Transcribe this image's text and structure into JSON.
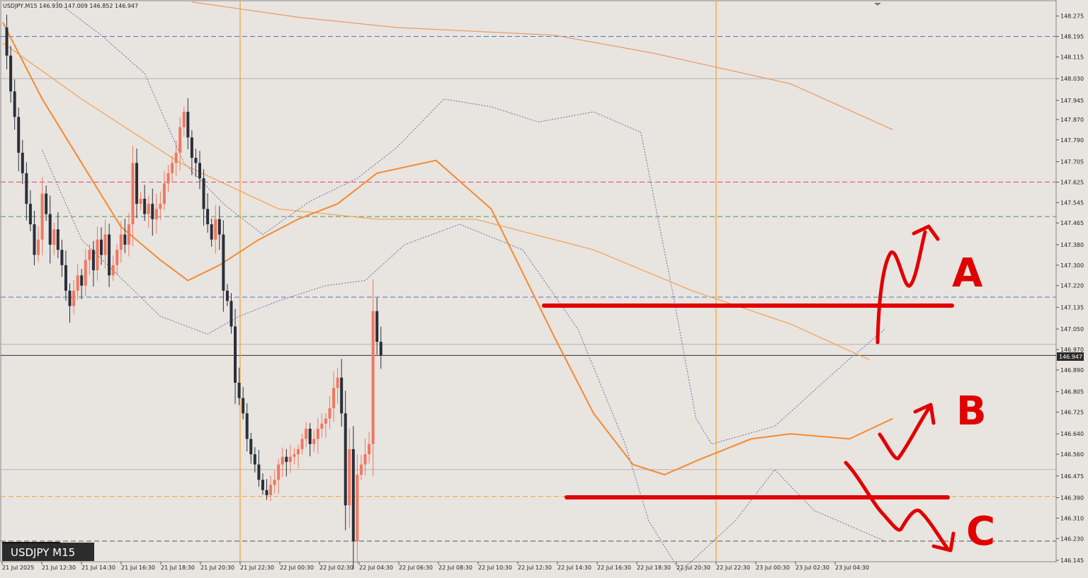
{
  "header": {
    "info": "USDJPY,M15  146.930 147.009 146.852 146.947"
  },
  "symbol_label": "USDJPY M15",
  "price_tag": "146.947",
  "chart_data": {
    "type": "candlestick",
    "symbol": "USDJPY",
    "timeframe": "M15",
    "ylim": [
      146.145,
      148.31
    ],
    "y_ticks": [
      "148.275",
      "148.195",
      "148.115",
      "148.030",
      "147.945",
      "147.870",
      "147.790",
      "147.705",
      "147.625",
      "147.545",
      "147.465",
      "147.380",
      "147.300",
      "147.220",
      "147.135",
      "147.050",
      "146.970",
      "146.890",
      "146.805",
      "146.725",
      "146.640",
      "146.560",
      "146.475",
      "146.390",
      "146.310",
      "146.230",
      "146.145"
    ],
    "x_ticks": [
      "21 Jul 2025",
      "21 Jul 12:30",
      "21 Jul 14:30",
      "21 Jul 16:30",
      "21 Jul 18:30",
      "21 Jul 20:30",
      "21 Jul 22:30",
      "22 Jul 00:30",
      "22 Jul 02:30",
      "22 Jul 04:30",
      "22 Jul 06:30",
      "22 Jul 08:30",
      "22 Jul 10:30",
      "22 Jul 12:30",
      "22 Jul 14:30",
      "22 Jul 16:30",
      "22 Jul 18:30",
      "22 Jul 20:30",
      "22 Jul 22:30",
      "23 Jul 00:30",
      "23 Jul 02:30",
      "23 Jul 04:30"
    ],
    "current_price": 146.947,
    "last_bar": {
      "open": 146.93,
      "high": 147.009,
      "low": 146.852,
      "close": 146.947
    },
    "close_path": [
      148.23,
      148.12,
      147.98,
      147.88,
      147.74,
      147.66,
      147.54,
      147.46,
      147.34,
      147.4,
      147.58,
      147.5,
      147.38,
      147.44,
      147.36,
      147.3,
      147.2,
      147.14,
      147.2,
      147.26,
      147.22,
      147.32,
      147.36,
      147.28,
      147.4,
      147.34,
      147.42,
      147.26,
      147.3,
      147.36,
      147.42,
      147.38,
      147.46,
      147.7,
      147.54,
      147.56,
      147.5,
      147.54,
      147.48,
      147.52,
      147.54,
      147.62,
      147.66,
      147.7,
      147.74,
      147.84,
      147.9,
      147.8,
      147.72,
      147.7,
      147.64,
      147.52,
      147.46,
      147.4,
      147.48,
      147.42,
      147.2,
      147.16,
      147.06,
      146.84,
      146.78,
      146.72,
      146.62,
      146.56,
      146.52,
      146.46,
      146.42,
      146.4,
      146.44,
      146.46,
      146.52,
      146.55,
      146.53,
      146.55,
      146.56,
      146.58,
      146.62,
      146.66,
      146.6,
      146.62,
      146.66,
      146.68,
      146.7,
      146.74,
      146.82,
      146.86,
      146.72,
      146.36,
      146.58,
      146.22,
      146.48,
      146.52,
      146.56,
      146.6,
      147.12,
      147.0,
      146.947
    ],
    "horizontal_levels": [
      {
        "price": 148.195,
        "color": "#4a7ac0",
        "style": "dashed"
      },
      {
        "price": 148.03,
        "color": "#b4b4b4",
        "style": "solid"
      },
      {
        "price": 147.625,
        "color": "#e04080",
        "style": "dashed"
      },
      {
        "price": 147.49,
        "color": "#4a9a4a",
        "style": "dashed"
      },
      {
        "price": 147.175,
        "color": "#4a7ac0",
        "style": "dashed"
      },
      {
        "price": 146.99,
        "color": "#b4b4b4",
        "style": "solid"
      },
      {
        "price": 146.947,
        "color": "#333333",
        "style": "solid"
      },
      {
        "price": 146.5,
        "color": "#b4b4b4",
        "style": "solid"
      },
      {
        "price": 146.395,
        "color": "#f0a030",
        "style": "dashed"
      },
      {
        "price": 146.22,
        "color": "#555555",
        "style": "dashed"
      }
    ],
    "session_separators": [
      "21 Jul 22:30",
      "22 Jul 22:30"
    ],
    "moving_averages": {
      "fast_color": "#f58a30",
      "slow_color": "#f5a050",
      "bands_color": "#6870a0",
      "fast_points": [
        [
          0,
          148.25
        ],
        [
          10,
          147.95
        ],
        [
          20,
          147.7
        ],
        [
          30,
          147.45
        ],
        [
          40,
          147.32
        ],
        [
          47,
          147.24
        ],
        [
          55,
          147.3
        ],
        [
          65,
          147.4
        ],
        [
          75,
          147.48
        ],
        [
          85,
          147.54
        ],
        [
          95,
          147.66
        ],
        [
          110,
          147.71
        ],
        [
          124,
          147.52
        ],
        [
          140,
          147.02
        ],
        [
          150,
          146.72
        ],
        [
          160,
          146.52
        ],
        [
          168,
          146.48
        ],
        [
          177,
          146.54
        ],
        [
          190,
          146.62
        ],
        [
          200,
          146.64
        ],
        [
          215,
          146.62
        ],
        [
          226,
          146.7
        ]
      ],
      "slow_points": [
        [
          0,
          148.17
        ],
        [
          20,
          147.95
        ],
        [
          45,
          147.7
        ],
        [
          70,
          147.52
        ],
        [
          95,
          147.48
        ],
        [
          120,
          147.48
        ],
        [
          150,
          147.36
        ],
        [
          175,
          147.2
        ],
        [
          200,
          147.07
        ],
        [
          220,
          146.93
        ]
      ],
      "long_points": [
        [
          48,
          148.33
        ],
        [
          75,
          148.27
        ],
        [
          100,
          148.23
        ],
        [
          140,
          148.2
        ],
        [
          165,
          148.13
        ],
        [
          200,
          148.01
        ],
        [
          226,
          147.83
        ]
      ],
      "upper_band": [
        [
          12,
          148.35
        ],
        [
          25,
          148.2
        ],
        [
          36,
          148.05
        ],
        [
          46,
          147.7
        ],
        [
          56,
          147.54
        ],
        [
          66,
          147.42
        ],
        [
          78,
          147.55
        ],
        [
          90,
          147.64
        ],
        [
          100,
          147.76
        ],
        [
          112,
          147.95
        ],
        [
          124,
          147.92
        ],
        [
          136,
          147.86
        ],
        [
          150,
          147.9
        ],
        [
          162,
          147.82
        ],
        [
          170,
          147.2
        ],
        [
          176,
          146.7
        ],
        [
          180,
          146.6
        ],
        [
          196,
          146.67
        ],
        [
          214,
          146.92
        ],
        [
          224,
          147.05
        ]
      ],
      "lower_band": [
        [
          10,
          147.75
        ],
        [
          20,
          147.4
        ],
        [
          30,
          147.25
        ],
        [
          40,
          147.1
        ],
        [
          52,
          147.03
        ],
        [
          60,
          147.1
        ],
        [
          70,
          147.16
        ],
        [
          82,
          147.22
        ],
        [
          92,
          147.24
        ],
        [
          102,
          147.38
        ],
        [
          116,
          147.46
        ],
        [
          132,
          147.36
        ],
        [
          146,
          147.05
        ],
        [
          158,
          146.6
        ],
        [
          164,
          146.3
        ],
        [
          172,
          146.1
        ],
        [
          186,
          146.3
        ],
        [
          196,
          146.5
        ],
        [
          206,
          146.34
        ],
        [
          224,
          146.22
        ]
      ]
    }
  },
  "annotations": {
    "scenario_a": "A",
    "scenario_b": "B",
    "scenario_c": "C",
    "resistance_price": 147.16,
    "support_price": 146.4,
    "color": "#e00000"
  }
}
